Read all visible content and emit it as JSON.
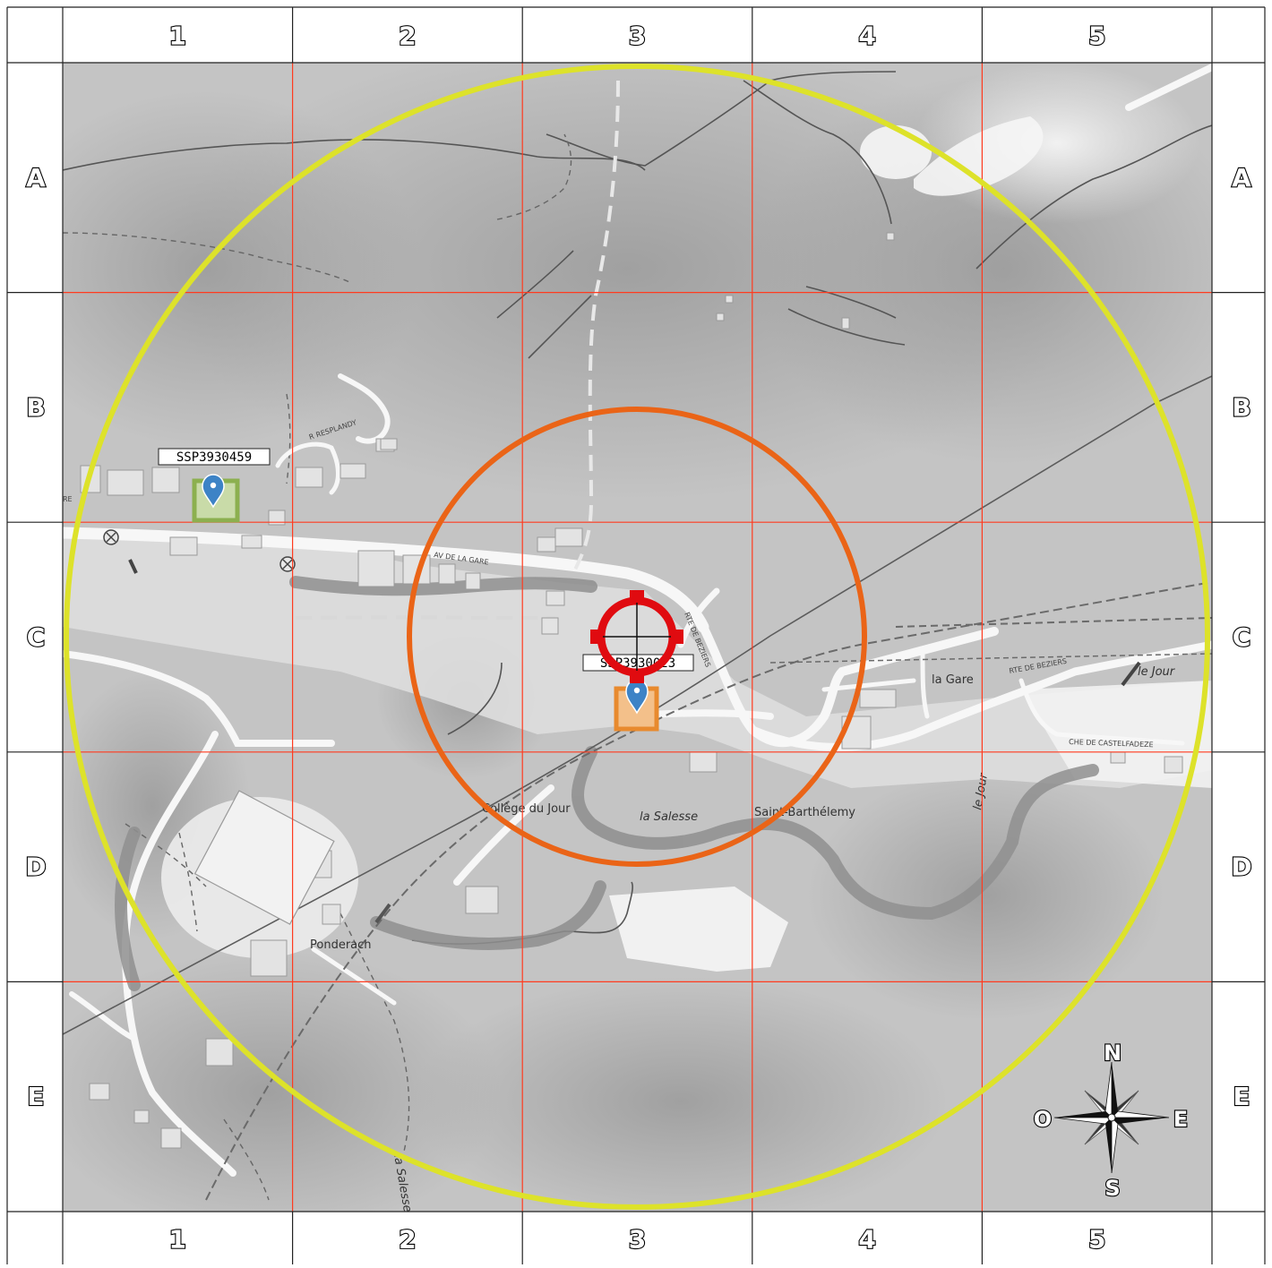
{
  "grid": {
    "columns": [
      "1",
      "2",
      "3",
      "4",
      "5"
    ],
    "rows": [
      "A",
      "B",
      "C",
      "D",
      "E"
    ]
  },
  "places": {
    "la_gare": "la Gare",
    "la_salesse": "la Salesse",
    "saint_barthelemy": "Saint-Barthélemy",
    "college_du_jour": "Collège du Jour",
    "ponderach": "Ponderach",
    "le_jour": "le Jour",
    "le_jour_river": "le Jour",
    "salesse_road": "la Salesse"
  },
  "streets": {
    "r_resplandy": "R RESPLANDY",
    "av_de_la_gare": "AV DE LA GARE",
    "rte_de_beziers_1": "RTE DE BEZIERS",
    "rte_de_beziers_2": "RTE DE BEZIERS",
    "che_de_castelfadeze": "CHE DE CASTELFADEZE",
    "partial_re": "RE"
  },
  "samples": [
    {
      "id": "SSP3930459",
      "color": "#8cb04f",
      "inner": "#c9dba8"
    },
    {
      "id": "SSP3930023",
      "color": "#e88a2e",
      "inner": "#f3c08a"
    }
  ],
  "compass": {
    "north": "N",
    "south": "S",
    "east": "E",
    "west": "O"
  },
  "colors": {
    "outer_ring": "#dde22a",
    "inner_ring": "#ea6417",
    "target": "#e00b10",
    "grid_line": "#ff3b1f",
    "marker_pin": "#3d83c6"
  }
}
